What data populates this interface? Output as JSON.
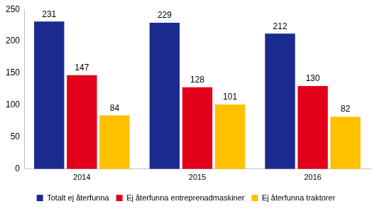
{
  "chart_data": {
    "type": "bar",
    "categories": [
      "2014",
      "2015",
      "2016"
    ],
    "series": [
      {
        "name": "Totalt ej återfunna",
        "color": "#1b2a8f",
        "values": [
          231,
          229,
          212
        ]
      },
      {
        "name": "Ej återfunna entreprenadmaskiner",
        "color": "#e2001a",
        "values": [
          147,
          128,
          130
        ]
      },
      {
        "name": "Ej återfunna traktorer",
        "color": "#ffc000",
        "values": [
          84,
          101,
          82
        ]
      }
    ],
    "ylim": [
      0,
      250
    ],
    "yticks": [
      0,
      50,
      100,
      150,
      200,
      250
    ],
    "grid": false,
    "legend": "bottom",
    "data_labels": true
  }
}
